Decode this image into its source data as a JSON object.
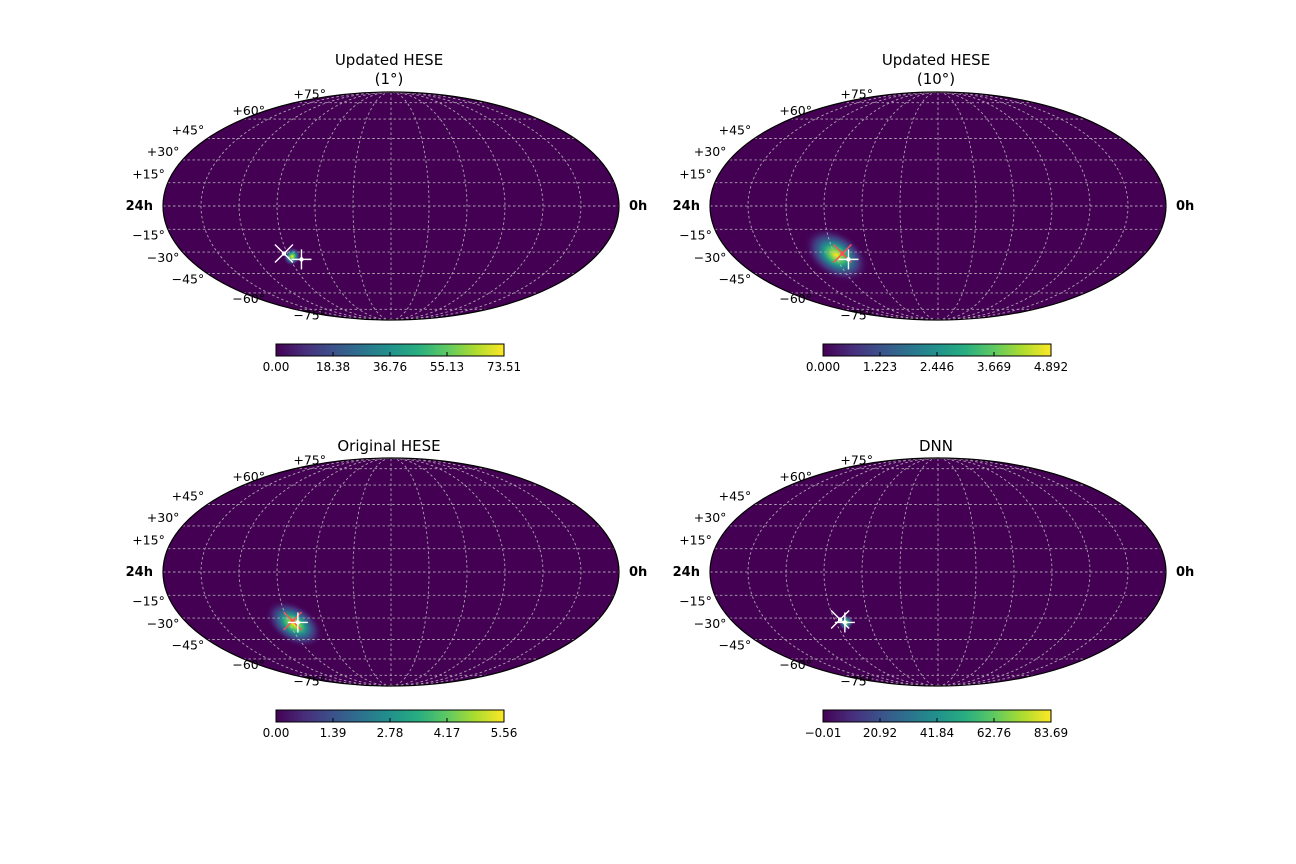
{
  "chart_data": [
    {
      "type": "heatmap",
      "projection": "mollweide",
      "title": "Updated HESE",
      "subtitle": "(1°)",
      "ra_labels": [
        "24h",
        "0h"
      ],
      "dec_labels": [
        "+75°",
        "+60°",
        "+45°",
        "+30°",
        "+15°",
        "−15°",
        "−30°",
        "−45°",
        "−60°",
        "−75°"
      ],
      "grid": true,
      "colormap": "viridis",
      "colorbar_ticks": [
        "0.00",
        "18.38",
        "36.76",
        "55.13",
        "73.51"
      ],
      "colorbar_range": [
        0.0,
        73.51
      ],
      "hotspot": {
        "ra_deg": 267,
        "dec_deg": -33,
        "spread_ra_deg": 3,
        "spread_dec_deg": 3
      },
      "markers": [
        {
          "ra_deg": 273,
          "dec_deg": -31,
          "shape": "x",
          "color": "#ffffff"
        },
        {
          "ra_deg": 260,
          "dec_deg": -35,
          "shape": "+",
          "color": "#ffffff"
        }
      ]
    },
    {
      "type": "heatmap",
      "projection": "mollweide",
      "title": "Updated HESE",
      "subtitle": "(10°)",
      "ra_labels": [
        "24h",
        "0h"
      ],
      "dec_labels": [
        "+75°",
        "+60°",
        "+45°",
        "+30°",
        "+15°",
        "−15°",
        "−30°",
        "−45°",
        "−60°",
        "−75°"
      ],
      "grid": true,
      "colormap": "viridis",
      "colorbar_ticks": [
        "0.000",
        "1.223",
        "2.446",
        "3.669",
        "4.892"
      ],
      "colorbar_range": [
        0.0,
        4.892
      ],
      "hotspot": {
        "ra_deg": 269,
        "dec_deg": -32,
        "spread_ra_deg": 12,
        "spread_dec_deg": 7
      },
      "markers": [
        {
          "ra_deg": 263,
          "dec_deg": -31,
          "shape": "x",
          "color": "#ff5050"
        },
        {
          "ra_deg": 260,
          "dec_deg": -35,
          "shape": "+",
          "color": "#ffffff"
        }
      ]
    },
    {
      "type": "heatmap",
      "projection": "mollweide",
      "title": "Original HESE",
      "subtitle": "",
      "ra_labels": [
        "24h",
        "0h"
      ],
      "dec_labels": [
        "+75°",
        "+60°",
        "+45°",
        "+30°",
        "+15°",
        "−15°",
        "−30°",
        "−45°",
        "−60°",
        "−75°"
      ],
      "grid": true,
      "colormap": "viridis",
      "colorbar_ticks": [
        "0.00",
        "1.39",
        "2.78",
        "4.17",
        "5.56"
      ],
      "colorbar_range": [
        0.0,
        5.56
      ],
      "hotspot": {
        "ra_deg": 266,
        "dec_deg": -34,
        "spread_ra_deg": 11,
        "spread_dec_deg": 6
      },
      "markers": [
        {
          "ra_deg": 266,
          "dec_deg": -32,
          "shape": "x",
          "color": "#ff5050"
        },
        {
          "ra_deg": 262,
          "dec_deg": -33,
          "shape": "+",
          "color": "#ffffff"
        }
      ]
    },
    {
      "type": "heatmap",
      "projection": "mollweide",
      "title": "DNN",
      "subtitle": "",
      "ra_labels": [
        "24h",
        "0h"
      ],
      "dec_labels": [
        "+75°",
        "+60°",
        "+45°",
        "+30°",
        "+15°",
        "−15°",
        "−30°",
        "−45°",
        "−60°",
        "−75°"
      ],
      "grid": true,
      "colormap": "viridis",
      "colorbar_ticks": [
        "−0.01",
        "20.92",
        "41.84",
        "62.76",
        "83.69"
      ],
      "colorbar_range": [
        -0.01,
        83.69
      ],
      "hotspot": {
        "ra_deg": 261,
        "dec_deg": -33,
        "spread_ra_deg": 2.5,
        "spread_dec_deg": 2.5
      },
      "markers": [
        {
          "ra_deg": 265,
          "dec_deg": -31,
          "shape": "x",
          "color": "#ffffff"
        },
        {
          "ra_deg": 262,
          "dec_deg": -33,
          "shape": "+",
          "color": "#ffffff"
        }
      ]
    }
  ]
}
